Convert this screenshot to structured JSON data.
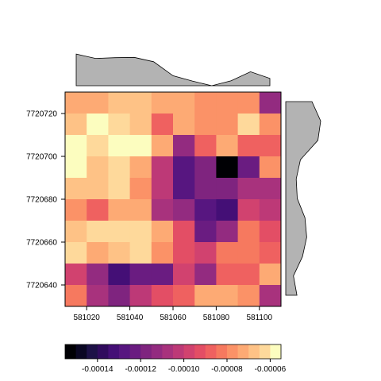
{
  "chart_data": {
    "type": "heatmap",
    "title": "",
    "xlabel": "",
    "ylabel": "",
    "x_ticks": [
      581020,
      581040,
      581060,
      581080,
      581100
    ],
    "y_ticks": [
      7720640,
      7720660,
      7720680,
      7720700,
      7720720
    ],
    "xlim": [
      581010,
      581110
    ],
    "ylim": [
      7720630,
      7720730
    ],
    "columns": 10,
    "rows": 10,
    "value_range": [
      -0.000155,
      -5.5e-05
    ],
    "grid": false,
    "values": [
      [
        -7.5e-05,
        -7.5e-05,
        -7e-05,
        -7e-05,
        -7.5e-05,
        -7.5e-05,
        -8e-05,
        -8e-05,
        -8e-05,
        -0.000115
      ],
      [
        -7e-05,
        -6e-05,
        -6.5e-05,
        -7e-05,
        -9e-05,
        -7.5e-05,
        -8e-05,
        -8e-05,
        -6.5e-05,
        -8e-05
      ],
      [
        -5.5e-05,
        -6.5e-05,
        -6e-05,
        -6e-05,
        -7.5e-05,
        -0.000115,
        -9e-05,
        -7.5e-05,
        -9e-05,
        -9e-05
      ],
      [
        -6e-05,
        -7e-05,
        -6.5e-05,
        -7.5e-05,
        -0.000105,
        -0.00013,
        -0.00012,
        -0.000155,
        -0.000125,
        -8e-05
      ],
      [
        -7e-05,
        -7e-05,
        -6.5e-05,
        -8e-05,
        -0.000105,
        -0.00013,
        -0.00012,
        -0.00012,
        -0.00011,
        -0.00011
      ],
      [
        -8e-05,
        -9e-05,
        -7.5e-05,
        -7.5e-05,
        -0.00011,
        -0.000115,
        -0.00013,
        -0.000135,
        -0.0001,
        -0.000105
      ],
      [
        -7e-05,
        -6.5e-05,
        -6.5e-05,
        -6.5e-05,
        -7.5e-05,
        -9.5e-05,
        -0.000125,
        -0.000115,
        -8.5e-05,
        -9.5e-05
      ],
      [
        -6.5e-05,
        -7.5e-05,
        -7e-05,
        -6.5e-05,
        -8e-05,
        -9.5e-05,
        -0.0001,
        -8.5e-05,
        -8.5e-05,
        -9e-05
      ],
      [
        -0.0001,
        -0.000115,
        -0.000135,
        -0.000125,
        -0.000125,
        -0.0001,
        -0.000115,
        -9e-05,
        -9e-05,
        -7.5e-05
      ],
      [
        -8.5e-05,
        -0.00011,
        -0.00012,
        -0.000105,
        -9.5e-05,
        -9e-05,
        -7.5e-05,
        -7.5e-05,
        -8e-05,
        -0.00011
      ]
    ],
    "color_scale": [
      "#000004",
      "#0a0723",
      "#1d1147",
      "#300b5d",
      "#440f76",
      "#571680",
      "#6a1c81",
      "#7f247f",
      "#932b80",
      "#a8327d",
      "#bd3977",
      "#d1426f",
      "#e34e65",
      "#ef6160",
      "#f6795f",
      "#fb9267",
      "#fdaa74",
      "#fec286",
      "#fed99b",
      "#fcfdbf"
    ],
    "legend": {
      "position": "bottom",
      "ticks": [
        -0.00014,
        -0.00012,
        -0.0001,
        -8e-05,
        -6e-05
      ],
      "tick_labels": [
        "-0.00014",
        "-0.00012",
        "-0.00010",
        "-0.00008",
        "-0.00006"
      ]
    },
    "marginal_top": {
      "type": "area",
      "color": "#b3b3b3",
      "x": [
        581010,
        581020,
        581030,
        581040,
        581050,
        581060,
        581070,
        581080,
        581090,
        581100,
        581110
      ],
      "values": [
        0.95,
        0.82,
        0.84,
        0.85,
        0.72,
        0.3,
        0.14,
        0.0,
        0.15,
        0.42,
        0.22
      ]
    },
    "marginal_right": {
      "type": "area",
      "color": "#b3b3b3",
      "y": [
        7720730,
        7720720,
        7720710,
        7720700,
        7720690,
        7720680,
        7720670,
        7720660,
        7720650,
        7720640,
        7720630
      ],
      "values": [
        0.75,
        1.0,
        0.92,
        0.42,
        0.3,
        0.33,
        0.55,
        0.6,
        0.48,
        0.22,
        0.32
      ]
    }
  },
  "x_tick_labels": [
    "581020",
    "581040",
    "581060",
    "581080",
    "581100"
  ],
  "y_tick_labels": [
    "7720640",
    "7720660",
    "7720680",
    "7720700",
    "7720720"
  ]
}
